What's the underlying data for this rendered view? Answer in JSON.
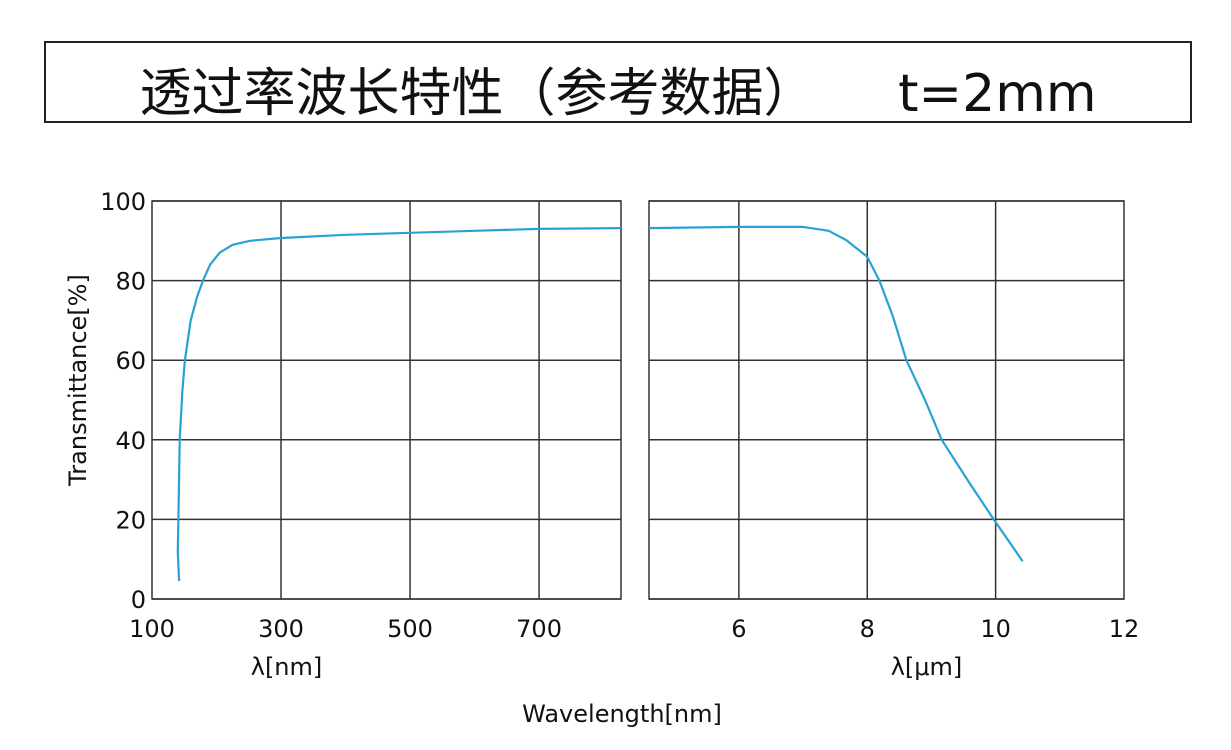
{
  "title": "透过率波长特性（参考数据）     t=2mm",
  "colors": {
    "curve": "#2aa1d3",
    "grid": "#333333"
  },
  "chart_data": [
    {
      "type": "line",
      "xlabel": "λ[nm]",
      "ylabel": "Transmittance[%]",
      "xlim": [
        100,
        827
      ],
      "ylim": [
        0,
        100
      ],
      "xticks": [
        100,
        300,
        500,
        700
      ],
      "yticks": [
        0,
        20,
        40,
        60,
        80,
        100
      ],
      "grid": true,
      "x": [
        142,
        140,
        141,
        143,
        147,
        151,
        160,
        170,
        179,
        190,
        205,
        225,
        252,
        300,
        400,
        500,
        600,
        700,
        827
      ],
      "y": [
        4.5,
        12,
        20,
        40,
        52,
        60,
        70,
        76,
        80,
        84,
        87,
        89,
        90,
        90.7,
        91.5,
        92,
        92.5,
        93,
        93.2
      ]
    },
    {
      "type": "line",
      "xlabel": "λ[μm]",
      "xlim": [
        4.6,
        12
      ],
      "ylim": [
        0,
        100
      ],
      "xticks": [
        6,
        8,
        10,
        12
      ],
      "yticks": [
        0,
        20,
        40,
        60,
        80,
        100
      ],
      "grid": true,
      "x": [
        4.6,
        6,
        7,
        7.4,
        7.67,
        8,
        8.19,
        8.4,
        8.61,
        8.9,
        9.16,
        9.6,
        9.97,
        10.42
      ],
      "y": [
        93.2,
        93.5,
        93.5,
        92.5,
        90.2,
        86,
        80,
        71,
        60,
        50,
        40,
        29,
        20,
        9.5
      ]
    }
  ],
  "footer_label": "Wavelength[nm]"
}
